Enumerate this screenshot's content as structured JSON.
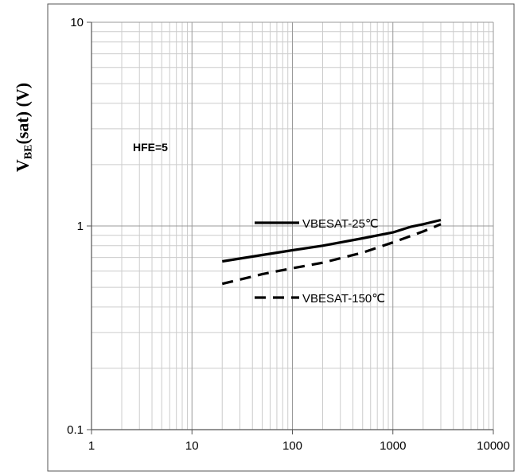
{
  "chart_data": {
    "type": "line",
    "ylabel": {
      "prefix": "V",
      "subscript": "BE",
      "suffix": "(sat) (V)"
    },
    "x_scale": "log",
    "y_scale": "log",
    "xlim": [
      1,
      10000
    ],
    "ylim": [
      0.1,
      10
    ],
    "x_ticks": [
      "1",
      "10",
      "100",
      "1000",
      "10000"
    ],
    "y_ticks": [
      "0.1",
      "1",
      "10"
    ],
    "grid": true,
    "annotation": "HFE=5",
    "series": [
      {
        "name": "VBESAT-25℃",
        "style": "solid",
        "color": "#000000",
        "x": [
          20,
          50,
          100,
          200,
          500,
          1000,
          1500,
          2000,
          3000
        ],
        "y": [
          0.67,
          0.72,
          0.76,
          0.8,
          0.87,
          0.93,
          0.99,
          1.02,
          1.07
        ]
      },
      {
        "name": "VBESAT-150℃",
        "style": "dashed",
        "color": "#000000",
        "x": [
          20,
          50,
          100,
          200,
          500,
          1000,
          2000,
          3000
        ],
        "y": [
          0.52,
          0.58,
          0.62,
          0.66,
          0.74,
          0.83,
          0.94,
          1.02
        ]
      }
    ]
  }
}
